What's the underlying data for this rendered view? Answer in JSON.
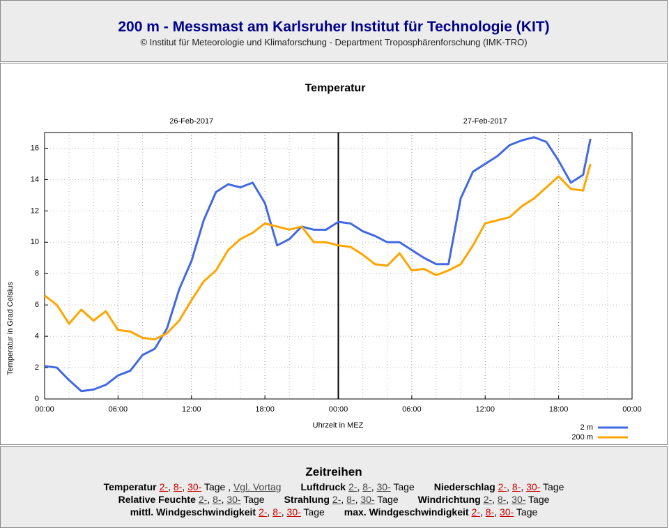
{
  "header": {
    "title": "200 m - Messmast am Karlsruher Institut für Technologie (KIT)",
    "subtitle": "© Institut für Meteorologie und Klimaforschung - Department Troposphärenforschung (IMK-TRO)"
  },
  "chart_data": {
    "type": "line",
    "title": "Temperatur",
    "x_label": "Uhrzeit in MEZ",
    "y_label": "Temperatur in Grad Celsius",
    "x": [
      0,
      1,
      2,
      3,
      4,
      5,
      6,
      7,
      8,
      9,
      10,
      11,
      12,
      13,
      14,
      15,
      16,
      17,
      18,
      19,
      20,
      21,
      22,
      23,
      24,
      25,
      26,
      27,
      28,
      29,
      30,
      31,
      32,
      33,
      34,
      35,
      36,
      37,
      38,
      39,
      40,
      41,
      42,
      43,
      44,
      44.6
    ],
    "series": [
      {
        "name": "2 m",
        "color": "#4169e1",
        "values": [
          2.1,
          2.0,
          1.2,
          0.5,
          0.6,
          0.9,
          1.5,
          1.8,
          2.8,
          3.2,
          4.5,
          7.0,
          8.8,
          11.4,
          13.2,
          13.7,
          13.5,
          13.8,
          12.5,
          9.8,
          10.2,
          11.0,
          10.8,
          10.8,
          11.3,
          11.2,
          10.7,
          10.4,
          10.0,
          10.0,
          9.5,
          9.0,
          8.6,
          8.6,
          12.8,
          14.5,
          15.0,
          15.5,
          16.2,
          16.5,
          16.7,
          16.4,
          15.2,
          13.8,
          14.3,
          16.6
        ]
      },
      {
        "name": "200 m",
        "color": "#ffa500",
        "values": [
          6.6,
          6.0,
          4.8,
          5.7,
          5.0,
          5.6,
          4.4,
          4.3,
          3.9,
          3.8,
          4.2,
          5.0,
          6.3,
          7.5,
          8.2,
          9.5,
          10.2,
          10.6,
          11.2,
          11.0,
          10.8,
          11.0,
          10.0,
          10.0,
          9.8,
          9.7,
          9.2,
          8.6,
          8.5,
          9.3,
          8.2,
          8.3,
          7.9,
          8.2,
          8.6,
          9.8,
          11.2,
          11.4,
          11.6,
          12.3,
          12.8,
          13.5,
          14.2,
          13.4,
          13.3,
          15.0
        ]
      }
    ],
    "xlim": [
      0,
      48
    ],
    "xticks": [
      {
        "value": 0,
        "label": "00:00"
      },
      {
        "value": 6,
        "label": "06:00"
      },
      {
        "value": 12,
        "label": "12:00"
      },
      {
        "value": 18,
        "label": "18:00"
      },
      {
        "value": 24,
        "label": "00:00"
      },
      {
        "value": 30,
        "label": "06:00"
      },
      {
        "value": 36,
        "label": "12:00"
      },
      {
        "value": 42,
        "label": "18:00"
      },
      {
        "value": 48,
        "label": "00:00"
      }
    ],
    "x_minor_step": 2,
    "date_labels": [
      {
        "value": 12,
        "label": "26-Feb-2017"
      },
      {
        "value": 36,
        "label": "27-Feb-2017"
      }
    ],
    "day_line": 24,
    "ylim": [
      0,
      17
    ],
    "yticks": [
      0,
      2,
      4,
      6,
      8,
      10,
      12,
      14,
      16
    ],
    "grid": true,
    "legend": "lower right"
  },
  "links": {
    "title": "Zeitreihen",
    "separator": ",",
    "rows": [
      [
        {
          "label": "Temperatur",
          "links": [
            "2-",
            "8-",
            "30-"
          ],
          "unit": "Tage",
          "visited": true,
          "extra": "Vgl. Vortag"
        },
        {
          "label": "Luftdruck",
          "links": [
            "2-",
            "8-",
            "30-"
          ],
          "unit": "Tage",
          "visited": false
        },
        {
          "label": "Niederschlag",
          "links": [
            "2-",
            "8-",
            "30-"
          ],
          "unit": "Tage",
          "visited": true
        }
      ],
      [
        {
          "label": "Relative Feuchte",
          "links": [
            "2-",
            "8-",
            "30-"
          ],
          "unit": "Tage",
          "visited": false
        },
        {
          "label": "Strahlung",
          "links": [
            "2-",
            "8-",
            "30-"
          ],
          "unit": "Tage",
          "visited": false
        },
        {
          "label": "Windrichtung",
          "links": [
            "2-",
            "8-",
            "30-"
          ],
          "unit": "Tage",
          "visited": false
        }
      ],
      [
        {
          "label": "mittl. Windgeschwindigkeit",
          "links": [
            "2-",
            "8-",
            "30-"
          ],
          "unit": "Tage",
          "visited": true
        },
        {
          "label": "max. Windgeschwindigkeit",
          "links": [
            "2-",
            "8-",
            "30-"
          ],
          "unit": "Tage",
          "visited": true
        }
      ]
    ]
  }
}
